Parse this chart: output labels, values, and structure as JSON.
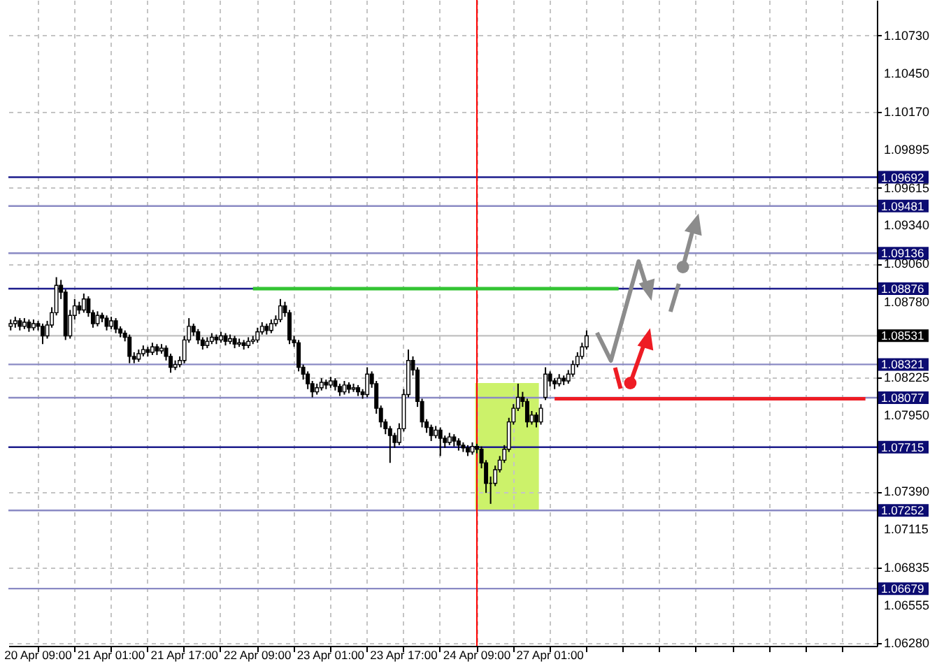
{
  "chart_data": {
    "type": "candlestick",
    "categories": [
      null,
      null,
      null,
      null,
      null,
      null,
      "20 Apr 09:00",
      null,
      null,
      null,
      null,
      null,
      null,
      null,
      null,
      null,
      null,
      null,
      null,
      null,
      null,
      null,
      "21 Apr 01:00",
      null,
      null,
      null,
      null,
      null,
      null,
      null,
      null,
      null,
      null,
      null,
      null,
      null,
      null,
      null,
      "21 Apr 17:00",
      null,
      null,
      null,
      null,
      null,
      null,
      null,
      null,
      null,
      null,
      null,
      null,
      null,
      null,
      null,
      "22 Apr 09:00",
      null,
      null,
      null,
      null,
      null,
      null,
      null,
      null,
      null,
      null,
      null,
      null,
      null,
      null,
      null,
      "23 Apr 01:00",
      null,
      null,
      null,
      null,
      null,
      null,
      null,
      null,
      null,
      null,
      null,
      null,
      null,
      null,
      null,
      "23 Apr 17:00",
      null,
      null,
      null,
      null,
      null,
      null,
      null,
      null,
      null,
      null,
      null,
      null,
      null,
      null,
      null,
      "24 Apr 09:00",
      null,
      null,
      null,
      null,
      null,
      null,
      null,
      null,
      null,
      null,
      null,
      null,
      null,
      null,
      null,
      "27 Apr 01:00",
      null,
      null,
      null,
      null,
      null,
      null,
      null,
      null,
      null,
      null,
      null,
      null,
      null,
      null,
      null,
      null,
      null,
      null,
      null,
      null,
      null,
      null,
      null,
      null,
      null,
      null,
      null,
      null,
      null,
      null,
      null,
      null,
      null,
      null,
      null,
      null,
      null,
      null,
      null,
      null,
      null,
      null,
      null,
      null,
      null,
      null,
      null,
      null,
      null,
      null,
      null,
      null,
      null,
      null,
      null,
      null,
      null,
      null,
      null,
      null,
      null,
      null,
      null,
      null,
      null,
      null,
      null,
      null,
      null,
      null,
      null
    ],
    "ohlc": [
      [
        1.086,
        1.0865,
        1.0857,
        1.0862
      ],
      [
        1.0862,
        1.0867,
        1.0859,
        1.0864
      ],
      [
        1.0864,
        1.0866,
        1.0857,
        1.086
      ],
      [
        1.086,
        1.0866,
        1.0858,
        1.0863
      ],
      [
        1.0863,
        1.0865,
        1.0856,
        1.0859
      ],
      [
        1.0859,
        1.0865,
        1.0857,
        1.0862
      ],
      [
        1.0862,
        1.0864,
        1.0857,
        1.086
      ],
      [
        1.086,
        1.0862,
        1.0847,
        1.0853
      ],
      [
        1.0853,
        1.0864,
        1.0851,
        1.0861
      ],
      [
        1.0861,
        1.0874,
        1.0859,
        1.087
      ],
      [
        1.087,
        1.0896,
        1.0868,
        1.089
      ],
      [
        1.089,
        1.0894,
        1.088,
        1.0885
      ],
      [
        1.0885,
        1.0887,
        1.085,
        1.0853
      ],
      [
        1.0853,
        1.0872,
        1.0851,
        1.0868
      ],
      [
        1.0868,
        1.088,
        1.0865,
        1.0875
      ],
      [
        1.0875,
        1.0878,
        1.0869,
        1.0872
      ],
      [
        1.0872,
        1.0884,
        1.087,
        1.088
      ],
      [
        1.088,
        1.0882,
        1.0867,
        1.087
      ],
      [
        1.087,
        1.0872,
        1.0859,
        1.0862
      ],
      [
        1.0862,
        1.0871,
        1.086,
        1.0868
      ],
      [
        1.0868,
        1.087,
        1.0863,
        1.0866
      ],
      [
        1.0866,
        1.0868,
        1.0857,
        1.086
      ],
      [
        1.086,
        1.0867,
        1.0858,
        1.0864
      ],
      [
        1.0864,
        1.0866,
        1.0855,
        1.0858
      ],
      [
        1.0858,
        1.086,
        1.0852,
        1.0855
      ],
      [
        1.0855,
        1.0857,
        1.0849,
        1.0852
      ],
      [
        1.0852,
        1.0854,
        1.0833,
        1.0838
      ],
      [
        1.0838,
        1.0841,
        1.0833,
        1.0836
      ],
      [
        1.0836,
        1.0843,
        1.0834,
        1.084
      ],
      [
        1.084,
        1.0846,
        1.0838,
        1.0843
      ],
      [
        1.0843,
        1.0845,
        1.0838,
        1.0841
      ],
      [
        1.0841,
        1.0848,
        1.0839,
        1.0845
      ],
      [
        1.0845,
        1.0847,
        1.0839,
        1.0842
      ],
      [
        1.0842,
        1.0847,
        1.084,
        1.0844
      ],
      [
        1.0844,
        1.0846,
        1.0835,
        1.0838
      ],
      [
        1.0838,
        1.084,
        1.0826,
        1.083
      ],
      [
        1.083,
        1.0835,
        1.0828,
        1.0832
      ],
      [
        1.0832,
        1.0838,
        1.083,
        1.0835
      ],
      [
        1.0835,
        1.0853,
        1.0833,
        1.085
      ],
      [
        1.085,
        1.0866,
        1.0848,
        1.086
      ],
      [
        1.086,
        1.0862,
        1.0853,
        1.0856
      ],
      [
        1.0856,
        1.0858,
        1.0847,
        1.085
      ],
      [
        1.085,
        1.0852,
        1.0843,
        1.0846
      ],
      [
        1.0846,
        1.0852,
        1.0844,
        1.0849
      ],
      [
        1.0849,
        1.0855,
        1.0847,
        1.0852
      ],
      [
        1.0852,
        1.0854,
        1.0847,
        1.085
      ],
      [
        1.085,
        1.0856,
        1.0848,
        1.0853
      ],
      [
        1.0853,
        1.0855,
        1.0846,
        1.0849
      ],
      [
        1.0849,
        1.0854,
        1.0847,
        1.0851
      ],
      [
        1.0851,
        1.0853,
        1.0844,
        1.0847
      ],
      [
        1.0847,
        1.0851,
        1.0845,
        1.0848
      ],
      [
        1.0848,
        1.085,
        1.0843,
        1.0846
      ],
      [
        1.0846,
        1.0852,
        1.0844,
        1.0849
      ],
      [
        1.0849,
        1.0853,
        1.0847,
        1.085
      ],
      [
        1.085,
        1.0859,
        1.0848,
        1.0856
      ],
      [
        1.0856,
        1.0863,
        1.0854,
        1.086
      ],
      [
        1.086,
        1.0862,
        1.0854,
        1.0857
      ],
      [
        1.0857,
        1.0865,
        1.0855,
        1.0862
      ],
      [
        1.0862,
        1.0868,
        1.086,
        1.0865
      ],
      [
        1.0865,
        1.088,
        1.0863,
        1.0875
      ],
      [
        1.0875,
        1.0878,
        1.0867,
        1.087
      ],
      [
        1.087,
        1.0872,
        1.0847,
        1.085
      ],
      [
        1.085,
        1.0853,
        1.0845,
        1.0848
      ],
      [
        1.0848,
        1.085,
        1.0827,
        1.083
      ],
      [
        1.083,
        1.0832,
        1.0821,
        1.0825
      ],
      [
        1.0825,
        1.0827,
        1.0814,
        1.0818
      ],
      [
        1.0818,
        1.082,
        1.0808,
        1.0812
      ],
      [
        1.0812,
        1.0818,
        1.081,
        1.0815
      ],
      [
        1.0815,
        1.0822,
        1.0813,
        1.0819
      ],
      [
        1.0819,
        1.0821,
        1.0814,
        1.0817
      ],
      [
        1.0817,
        1.0823,
        1.0815,
        1.082
      ],
      [
        1.082,
        1.0822,
        1.0813,
        1.0816
      ],
      [
        1.0816,
        1.0818,
        1.0809,
        1.0812
      ],
      [
        1.0812,
        1.082,
        1.081,
        1.0817
      ],
      [
        1.0817,
        1.0819,
        1.0811,
        1.0814
      ],
      [
        1.0814,
        1.0818,
        1.0812,
        1.0815
      ],
      [
        1.0815,
        1.0817,
        1.0809,
        1.0812
      ],
      [
        1.0812,
        1.0814,
        1.0807,
        1.081
      ],
      [
        1.081,
        1.083,
        1.0808,
        1.0825
      ],
      [
        1.0825,
        1.0827,
        1.0815,
        1.0818
      ],
      [
        1.0818,
        1.082,
        1.0796,
        1.08
      ],
      [
        1.08,
        1.0802,
        1.0786,
        1.079
      ],
      [
        1.079,
        1.0792,
        1.0781,
        1.0785
      ],
      [
        1.0785,
        1.0787,
        1.076,
        1.078
      ],
      [
        1.078,
        1.0782,
        1.0771,
        1.0775
      ],
      [
        1.0775,
        1.0789,
        1.0773,
        1.0785
      ],
      [
        1.0785,
        1.0814,
        1.0783,
        1.081
      ],
      [
        1.081,
        1.0843,
        1.0808,
        1.0835
      ],
      [
        1.0835,
        1.0838,
        1.0824,
        1.0828
      ],
      [
        1.0828,
        1.083,
        1.0801,
        1.0805
      ],
      [
        1.0805,
        1.0807,
        1.0786,
        1.079
      ],
      [
        1.079,
        1.0792,
        1.0782,
        1.0786
      ],
      [
        1.0786,
        1.0788,
        1.0776,
        1.078
      ],
      [
        1.078,
        1.0787,
        1.0778,
        1.0784
      ],
      [
        1.0784,
        1.0786,
        1.0765,
        1.0778
      ],
      [
        1.0778,
        1.078,
        1.0771,
        1.0775
      ],
      [
        1.0775,
        1.0782,
        1.0773,
        1.0779
      ],
      [
        1.0779,
        1.0781,
        1.0772,
        1.0776
      ],
      [
        1.0776,
        1.0778,
        1.0769,
        1.0773
      ],
      [
        1.0773,
        1.0775,
        1.0768,
        1.0771
      ],
      [
        1.0771,
        1.0773,
        1.0765,
        1.0768
      ],
      [
        1.0768,
        1.0775,
        1.0766,
        1.0772
      ],
      [
        1.0772,
        1.0774,
        1.0767,
        1.077
      ],
      [
        1.077,
        1.0772,
        1.0756,
        1.076
      ],
      [
        1.076,
        1.0762,
        1.0738,
        1.0745
      ],
      [
        1.0745,
        1.075,
        1.073,
        1.0745
      ],
      [
        1.0745,
        1.0758,
        1.0743,
        1.0755
      ],
      [
        1.0755,
        1.0765,
        1.0753,
        1.0762
      ],
      [
        1.0762,
        1.0773,
        1.076,
        1.077
      ],
      [
        1.077,
        1.0793,
        1.0768,
        1.079
      ],
      [
        1.079,
        1.0803,
        1.0788,
        1.08
      ],
      [
        1.08,
        1.0818,
        1.0798,
        1.0808
      ],
      [
        1.0808,
        1.0812,
        1.0801,
        1.0805
      ],
      [
        1.0805,
        1.0807,
        1.0786,
        1.079
      ],
      [
        1.079,
        1.0798,
        1.0788,
        1.0795
      ],
      [
        1.0795,
        1.0797,
        1.0786,
        1.079
      ],
      [
        1.079,
        1.0803,
        1.0788,
        1.08
      ],
      [
        1.0808,
        1.083,
        1.0806,
        1.0825
      ],
      [
        1.0825,
        1.0827,
        1.0816,
        1.082
      ],
      [
        1.082,
        1.0822,
        1.0814,
        1.0818
      ],
      [
        1.0818,
        1.0825,
        1.0816,
        1.0822
      ],
      [
        1.0822,
        1.0824,
        1.0817,
        1.082
      ],
      [
        1.082,
        1.0828,
        1.0818,
        1.0825
      ],
      [
        1.0825,
        1.0835,
        1.0823,
        1.0832
      ],
      [
        1.0832,
        1.0841,
        1.083,
        1.0838
      ],
      [
        1.0838,
        1.0848,
        1.0836,
        1.0845
      ],
      [
        1.0845,
        1.0857,
        1.0843,
        1.0853
      ],
      null,
      null,
      null,
      null,
      null,
      null,
      null,
      null,
      null,
      null,
      null,
      null,
      null,
      null,
      null,
      null,
      null,
      null,
      null,
      null,
      null,
      null,
      null,
      null,
      null,
      null,
      null,
      null,
      null,
      null,
      null,
      null,
      null,
      null,
      null,
      null,
      null,
      null,
      null,
      null,
      null,
      null,
      null,
      null,
      null,
      null,
      null,
      null,
      null,
      null,
      null,
      null,
      null,
      null,
      null,
      null,
      null,
      null,
      null,
      null,
      null,
      null,
      null
    ],
    "series": [
      {
        "type": "line",
        "color": "#33c433",
        "values": [
          null,
          null,
          null,
          null,
          null,
          null,
          null,
          null,
          null,
          null,
          null,
          null,
          null,
          null,
          null,
          null,
          null,
          null,
          null,
          null,
          null,
          null,
          null,
          null,
          null,
          null,
          null,
          null,
          null,
          null,
          null,
          null,
          null,
          null,
          null,
          null,
          null,
          null,
          null,
          null,
          null,
          null,
          null,
          null,
          null,
          null,
          null,
          null,
          null,
          null,
          null,
          null,
          null,
          1.08876,
          1.08876,
          1.08876,
          1.08876,
          1.08876,
          1.08876,
          1.08876,
          1.08876,
          1.08876,
          1.08876,
          1.08876,
          1.08876,
          1.08876,
          1.08876,
          1.08876,
          1.08876,
          1.08876,
          1.08876,
          1.08876,
          1.08876,
          1.08876,
          1.08876,
          1.08876,
          1.08876,
          1.08876,
          1.08876,
          1.08876,
          1.08876,
          1.08876,
          1.08876,
          1.08876,
          1.08876,
          1.08876,
          1.08876,
          1.08876,
          1.08876,
          1.08876,
          1.08876,
          1.08876,
          1.08876,
          1.08876,
          1.08876,
          1.08876,
          1.08876,
          1.08876,
          1.08876,
          1.08876,
          1.08876,
          1.08876,
          1.08876,
          1.08876,
          1.08876,
          1.08876,
          1.08876,
          1.08876,
          1.08876,
          1.08876,
          1.08876,
          1.08876,
          1.08876,
          1.08876,
          1.08876,
          1.08876,
          1.08876,
          1.08876,
          1.08876,
          1.08876,
          1.08876,
          1.08876,
          1.08876,
          1.08876,
          1.08876,
          1.08876,
          1.08876,
          1.08876,
          1.08876,
          1.08876,
          1.08876,
          1.08876,
          1.08876,
          1.08876,
          null,
          null,
          null,
          null,
          null,
          null,
          null,
          null,
          null,
          null,
          null,
          null,
          null,
          null,
          null,
          null,
          null,
          null,
          null,
          null,
          null,
          null,
          null,
          null,
          null,
          null,
          null,
          null,
          null,
          null,
          null,
          null,
          null,
          null,
          null,
          null,
          null,
          null,
          null,
          null,
          null,
          null,
          null,
          null,
          null,
          null,
          null,
          null,
          null,
          null,
          null,
          null,
          null,
          null,
          null,
          null
        ]
      },
      {
        "type": "line",
        "color": "#ee1c24",
        "values": [
          null,
          null,
          null,
          null,
          null,
          null,
          null,
          null,
          null,
          null,
          null,
          null,
          null,
          null,
          null,
          null,
          null,
          null,
          null,
          null,
          null,
          null,
          null,
          null,
          null,
          null,
          null,
          null,
          null,
          null,
          null,
          null,
          null,
          null,
          null,
          null,
          null,
          null,
          null,
          null,
          null,
          null,
          null,
          null,
          null,
          null,
          null,
          null,
          null,
          null,
          null,
          null,
          null,
          null,
          null,
          null,
          null,
          null,
          null,
          null,
          null,
          null,
          null,
          null,
          null,
          null,
          null,
          null,
          null,
          null,
          null,
          null,
          null,
          null,
          null,
          null,
          null,
          null,
          null,
          null,
          null,
          null,
          null,
          null,
          null,
          null,
          null,
          null,
          null,
          null,
          null,
          null,
          null,
          null,
          null,
          null,
          null,
          null,
          null,
          null,
          null,
          null,
          null,
          null,
          null,
          null,
          null,
          null,
          null,
          null,
          null,
          null,
          null,
          null,
          null,
          null,
          null,
          null,
          null,
          1.0807,
          1.0807,
          1.0807,
          1.0807,
          1.0807,
          1.0807,
          1.0807,
          1.0807,
          1.0807,
          1.0807,
          1.0807,
          1.0807,
          1.0807,
          1.0807,
          1.0807,
          1.0807,
          1.0807,
          1.0807,
          1.0807,
          1.0807,
          1.0807,
          1.0807,
          1.0807,
          1.0807,
          1.0807,
          1.0807,
          1.0807,
          1.0807,
          1.0807,
          1.0807,
          1.0807,
          1.0807,
          1.0807,
          1.0807,
          1.0807,
          1.0807,
          1.0807,
          1.0807,
          1.0807,
          1.0807,
          1.0807,
          1.0807,
          1.0807,
          1.0807,
          1.0807,
          1.0807,
          1.0807,
          1.0807,
          1.0807,
          1.0807,
          1.0807,
          1.0807,
          1.0807,
          1.0807,
          1.0807,
          1.0807,
          1.0807,
          1.0807,
          1.0807,
          1.0807,
          1.0807,
          1.0807,
          1.0807,
          1.0807,
          1.0807,
          1.0807,
          1.0807,
          1.0807,
          1.0807,
          null,
          null
        ]
      }
    ],
    "ylim": [
      1.0626,
      1.1099
    ],
    "yticks": [
      {
        "value": 1.1073,
        "label": "1.10730"
      },
      {
        "value": 1.1045,
        "label": "1.10450"
      },
      {
        "value": 1.1017,
        "label": "1.10170"
      },
      {
        "value": 1.09895,
        "label": "1.09895"
      },
      {
        "value": 1.09615,
        "label": "1.09615"
      },
      {
        "value": 1.0934,
        "label": "1.09340"
      },
      {
        "value": 1.0906,
        "label": "1.09060"
      },
      {
        "value": 1.0878,
        "label": "1.08780"
      },
      {
        "value": 1.08225,
        "label": "1.08225"
      },
      {
        "value": 1.0795,
        "label": "1.07950"
      },
      {
        "value": 1.0739,
        "label": "1.07390"
      },
      {
        "value": 1.07115,
        "label": "1.07115"
      },
      {
        "value": 1.06835,
        "label": "1.06835"
      },
      {
        "value": 1.06555,
        "label": "1.06555"
      },
      {
        "value": 1.0628,
        "label": "1.06280"
      }
    ],
    "grid": true,
    "ref_lines": [
      {
        "axis": "y",
        "value": 1.09692,
        "label": "1.09692",
        "color": "#1c1c8c"
      },
      {
        "axis": "y",
        "value": 1.09481,
        "label": "1.09481",
        "color": "#8a8ac4"
      },
      {
        "axis": "y",
        "value": 1.09136,
        "label": "1.09136",
        "color": "#8a8ac4"
      },
      {
        "axis": "y",
        "value": 1.08876,
        "label": "1.08876",
        "color": "#1c1c8c"
      },
      {
        "axis": "y",
        "value": 1.08531,
        "label": "1.08531",
        "color": "#c0c0c0"
      },
      {
        "axis": "y",
        "value": 1.08321,
        "label": "1.08321",
        "color": "#8a8ac4"
      },
      {
        "axis": "y",
        "value": 1.08077,
        "label": "1.08077",
        "color": "#8a8ac4"
      },
      {
        "axis": "y",
        "value": 1.07715,
        "label": "1.07715",
        "color": "#1c1c8c"
      },
      {
        "axis": "y",
        "value": 1.07252,
        "label": "1.07252",
        "color": "#8a8ac4"
      },
      {
        "axis": "y",
        "value": 1.06679,
        "label": "1.06679",
        "color": "#8a8ac4"
      },
      {
        "axis": "x",
        "value": "24 Apr 09:00",
        "color": "#ff0000"
      }
    ]
  }
}
